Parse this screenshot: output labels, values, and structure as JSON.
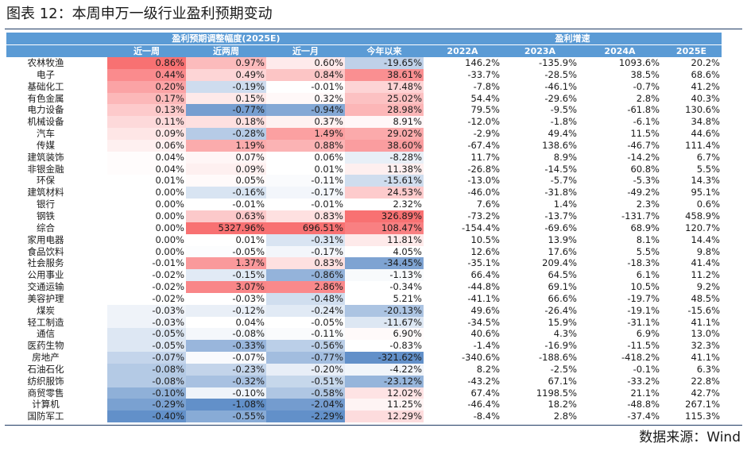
{
  "title": "图表 12：本周申万一级行业盈利预期变动",
  "source": "数据来源：Wind",
  "colors": {
    "header_bg": "#5b9bd5",
    "header_text": "#ffffff",
    "positive_heat": "#f8696b",
    "negative_heat": "#5a8ac6",
    "rule": "#1f3b63"
  },
  "header": {
    "group_revision": "盈利预期调整幅度(2025E)",
    "group_growth": "盈利增速",
    "columns": [
      "近一周",
      "近两周",
      "近一月",
      "今年以来",
      "2022A",
      "2023A",
      "2024A",
      "2025E"
    ]
  },
  "rows": [
    [
      "农林牧渔",
      "0.86%",
      "0.97%",
      "0.60%",
      "-19.65%",
      "146.2%",
      "-135.9%",
      "1093.6%",
      "20.2%"
    ],
    [
      "电子",
      "0.44%",
      "0.49%",
      "0.84%",
      "38.61%",
      "-33.7%",
      "-28.5%",
      "38.5%",
      "68.6%"
    ],
    [
      "基础化工",
      "0.20%",
      "-0.19%",
      "-0.01%",
      "17.48%",
      "-7.8%",
      "-46.1%",
      "-0.7%",
      "41.2%"
    ],
    [
      "有色金属",
      "0.17%",
      "0.15%",
      "0.32%",
      "25.02%",
      "54.4%",
      "-29.6%",
      "2.8%",
      "40.3%"
    ],
    [
      "电力设备",
      "0.13%",
      "-0.77%",
      "-0.94%",
      "28.98%",
      "79.5%",
      "-9.5%",
      "-61.8%",
      "130.6%"
    ],
    [
      "机械设备",
      "0.11%",
      "0.18%",
      "0.37%",
      "8.91%",
      "-12.0%",
      "-1.8%",
      "-6.1%",
      "34.8%"
    ],
    [
      "汽车",
      "0.09%",
      "-0.28%",
      "1.49%",
      "29.02%",
      "-2.9%",
      "49.4%",
      "11.5%",
      "44.6%"
    ],
    [
      "传媒",
      "0.06%",
      "1.19%",
      "0.88%",
      "38.60%",
      "-67.4%",
      "138.6%",
      "-46.7%",
      "111.4%"
    ],
    [
      "建筑装饰",
      "0.04%",
      "0.07%",
      "0.06%",
      "-8.28%",
      "11.7%",
      "8.9%",
      "-14.2%",
      "6.7%"
    ],
    [
      "非银金融",
      "0.04%",
      "0.09%",
      "0.01%",
      "11.38%",
      "-26.8%",
      "-14.5%",
      "60.8%",
      "5.5%"
    ],
    [
      "环保",
      "0.01%",
      "0.05%",
      "-0.11%",
      "-15.61%",
      "-13.0%",
      "-5.7%",
      "-5.3%",
      "14.3%"
    ],
    [
      "建筑材料",
      "0.00%",
      "-0.16%",
      "-0.17%",
      "24.53%",
      "-46.0%",
      "-31.8%",
      "-49.2%",
      "95.1%"
    ],
    [
      "银行",
      "0.00%",
      "-0.01%",
      "-0.01%",
      "2.32%",
      "7.6%",
      "1.4%",
      "2.3%",
      "0.6%"
    ],
    [
      "钢铁",
      "0.00%",
      "0.63%",
      "0.83%",
      "326.89%",
      "-73.2%",
      "-13.7%",
      "-131.7%",
      "458.9%"
    ],
    [
      "综合",
      "0.00%",
      "5327.96%",
      "696.51%",
      "108.47%",
      "-154.4%",
      "-69.6%",
      "68.9%",
      "120.7%"
    ],
    [
      "家用电器",
      "0.00%",
      "0.01%",
      "-0.31%",
      "11.81%",
      "10.5%",
      "13.9%",
      "8.1%",
      "14.4%"
    ],
    [
      "食品饮料",
      "0.00%",
      "-0.05%",
      "-0.17%",
      "4.05%",
      "12.6%",
      "17.6%",
      "5.5%",
      "9.8%"
    ],
    [
      "社会服务",
      "-0.01%",
      "1.37%",
      "0.83%",
      "-34.45%",
      "-35.1%",
      "209.4%",
      "-18.3%",
      "41.4%"
    ],
    [
      "公用事业",
      "-0.02%",
      "-0.15%",
      "-0.86%",
      "-1.13%",
      "66.4%",
      "64.5%",
      "6.1%",
      "11.2%"
    ],
    [
      "交通运输",
      "-0.02%",
      "3.07%",
      "2.86%",
      "-0.34%",
      "-44.8%",
      "69.1%",
      "10.5%",
      "9.2%"
    ],
    [
      "美容护理",
      "-0.02%",
      "-0.03%",
      "-0.48%",
      "5.21%",
      "-41.1%",
      "66.6%",
      "-19.7%",
      "48.5%"
    ],
    [
      "煤炭",
      "-0.03%",
      "-0.12%",
      "-0.24%",
      "-20.13%",
      "49.6%",
      "-26.4%",
      "-19.1%",
      "-15.6%"
    ],
    [
      "轻工制造",
      "-0.03%",
      "0.04%",
      "-0.05%",
      "-11.67%",
      "-34.5%",
      "15.9%",
      "-31.1%",
      "41.1%"
    ],
    [
      "通信",
      "-0.05%",
      "-0.08%",
      "-0.11%",
      "6.90%",
      "40.6%",
      "4.3%",
      "6.9%",
      "13.0%"
    ],
    [
      "医药生物",
      "-0.05%",
      "-0.33%",
      "-0.56%",
      "-0.83%",
      "-1.4%",
      "-16.9%",
      "-11.5%",
      "32.3%"
    ],
    [
      "房地产",
      "-0.07%",
      "-0.07%",
      "-0.77%",
      "-321.62%",
      "-340.6%",
      "-188.6%",
      "-418.2%",
      "41.1%"
    ],
    [
      "石油石化",
      "-0.08%",
      "-0.23%",
      "-0.20%",
      "-4.22%",
      "8.2%",
      "-2.5%",
      "-0.1%",
      "6.3%"
    ],
    [
      "纺织服饰",
      "-0.08%",
      "-0.32%",
      "-0.51%",
      "-23.12%",
      "-43.2%",
      "67.1%",
      "-33.2%",
      "22.8%"
    ],
    [
      "商贸零售",
      "-0.10%",
      "-0.10%",
      "-0.58%",
      "12.02%",
      "67.4%",
      "1198.5%",
      "21.1%",
      "42.7%"
    ],
    [
      "计算机",
      "-0.29%",
      "-1.08%",
      "-2.04%",
      "11.25%",
      "-46.4%",
      "18.2%",
      "-48.8%",
      "267.1%"
    ],
    [
      "国防军工",
      "-0.40%",
      "-0.55%",
      "-2.29%",
      "12.29%",
      "-8.4%",
      "2.8%",
      "-37.4%",
      "115.3%"
    ]
  ]
}
